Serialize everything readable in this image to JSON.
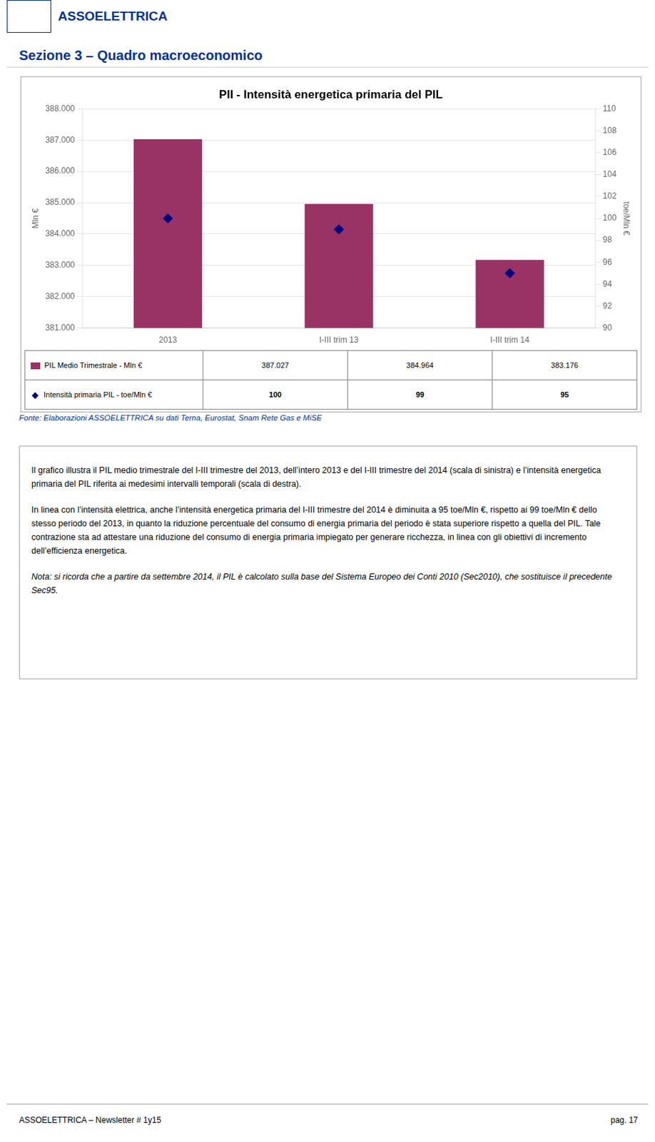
{
  "page": {
    "logo_text": "ASSOELETTRICA",
    "section_title": "Sezione 3 – Quadro macroeconomico",
    "source": "Fonte: Elaborazioni ASSOELETTRICA su dati Terna, Eurostat, Snam Rete Gas e MiSE",
    "body_text": [
      "Il grafico illustra il PIL medio trimestrale del I-III trimestre del 2013, dell’intero 2013 e del I-III trimestre del 2014 (scala di sinistra) e l’intensità energetica primaria del PIL riferita ai medesimi intervalli temporali (scala di destra).",
      "In linea con l’intensità elettrica, anche l’intensità energetica primaria del I-III trimestre del 2014 è diminuita a 95 toe/Mln €, rispetto ai 99 toe/Mln € dello stesso periodo del 2013, in quanto la riduzione percentuale del consumo di energia primaria del periodo è stata superiore rispetto a quella del PIL. Tale contrazione sta ad attestare una riduzione del consumo di energia primaria impiegato per generare ricchezza, in linea con gli obiettivi di incremento dell’efficienza energetica."
    ],
    "note": "Nota: si ricorda che a partire da settembre 2014, il PIL è calcolato sulla base del Sistema Europeo dei Conti 2010 (Sec2010), che sostituisce il precedente Sec95.",
    "footer_left": "ASSOELETTRICA – Newsletter # 1y15",
    "footer_right": "pag. 17"
  },
  "chart_data": {
    "type": "bar",
    "title": "PII - Intensità energetica primaria del PIL",
    "categories": [
      "2013",
      "I-III trim 13",
      "I-III trim 14"
    ],
    "series": [
      {
        "name": "PIL Medio Trimestrale - Mln €",
        "type": "bar",
        "color": "#993366",
        "values": [
          387027,
          384964,
          383176
        ],
        "value_labels": [
          "387.027",
          "384.964",
          "383.176"
        ]
      },
      {
        "name": "Intensità primaria PIL - toe/Mln €",
        "type": "line",
        "color": "#000080",
        "marker": "diamond",
        "line_style": "none",
        "axis": "y2",
        "values": [
          100,
          99,
          95
        ]
      }
    ],
    "ylabel": "Mln €",
    "y2label": "toe/Mln €",
    "ylim": [
      381000,
      388000
    ],
    "yticks": [
      {
        "value": 381000,
        "label": "381.000"
      },
      {
        "value": 382000,
        "label": "382.000"
      },
      {
        "value": 383000,
        "label": "383.000"
      },
      {
        "value": 384000,
        "label": "384.000"
      },
      {
        "value": 385000,
        "label": "385.000"
      },
      {
        "value": 386000,
        "label": "386.000"
      },
      {
        "value": 387000,
        "label": "387.000"
      },
      {
        "value": 388000,
        "label": "388.000"
      }
    ],
    "y2lim": [
      90,
      110
    ],
    "y2ticks": [
      90,
      92,
      94,
      96,
      98,
      100,
      102,
      104,
      106,
      108,
      110
    ],
    "grid": true
  }
}
